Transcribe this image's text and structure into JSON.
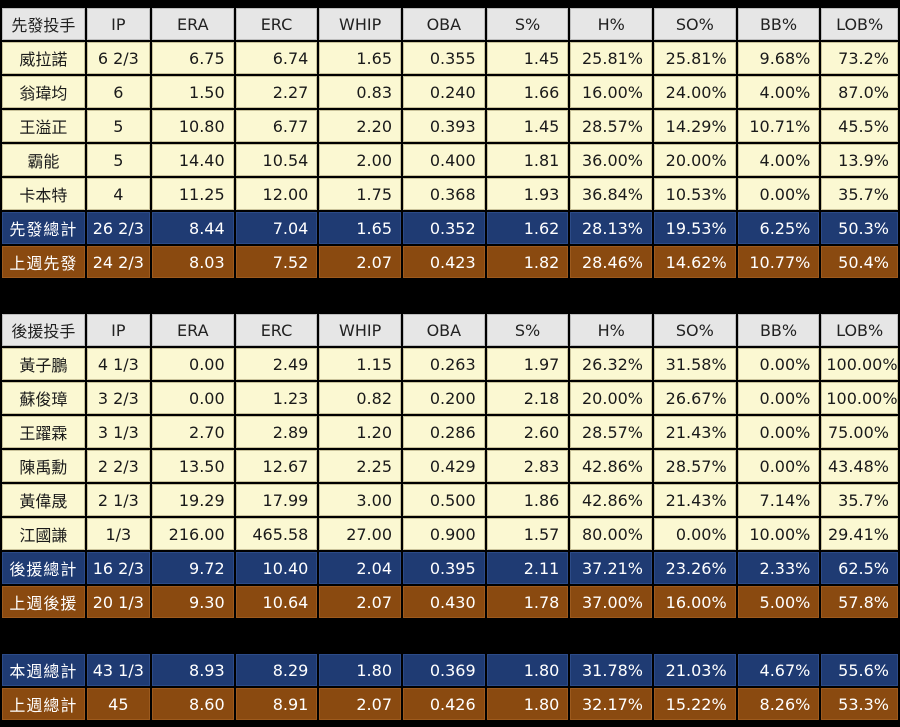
{
  "columns": [
    "IP",
    "ERA",
    "ERC",
    "WHIP",
    "OBA",
    "S%",
    "H%",
    "SO%",
    "BB%",
    "LOB%"
  ],
  "starters": {
    "header": "先發投手",
    "rows": [
      {
        "name": "威拉諾",
        "vals": [
          "6 2/3",
          "6.75",
          "6.74",
          "1.65",
          "0.355",
          "1.45",
          "25.81%",
          "25.81%",
          "9.68%",
          "73.2%"
        ]
      },
      {
        "name": "翁瑋均",
        "vals": [
          "6",
          "1.50",
          "2.27",
          "0.83",
          "0.240",
          "1.66",
          "16.00%",
          "24.00%",
          "4.00%",
          "87.0%"
        ]
      },
      {
        "name": "王溢正",
        "vals": [
          "5",
          "10.80",
          "6.77",
          "2.20",
          "0.393",
          "1.45",
          "28.57%",
          "14.29%",
          "10.71%",
          "45.5%"
        ]
      },
      {
        "name": "霸能",
        "vals": [
          "5",
          "14.40",
          "10.54",
          "2.00",
          "0.400",
          "1.81",
          "36.00%",
          "20.00%",
          "4.00%",
          "13.9%"
        ]
      },
      {
        "name": "卡本特",
        "vals": [
          "4",
          "11.25",
          "12.00",
          "1.75",
          "0.368",
          "1.93",
          "36.84%",
          "10.53%",
          "0.00%",
          "35.7%"
        ]
      }
    ],
    "total": {
      "name": "先發總計",
      "vals": [
        "26 2/3",
        "8.44",
        "7.04",
        "1.65",
        "0.352",
        "1.62",
        "28.13%",
        "19.53%",
        "6.25%",
        "50.3%"
      ]
    },
    "last_week": {
      "name": "上週先發",
      "vals": [
        "24 2/3",
        "8.03",
        "7.52",
        "2.07",
        "0.423",
        "1.82",
        "28.46%",
        "14.62%",
        "10.77%",
        "50.4%"
      ]
    }
  },
  "relievers": {
    "header": "後援投手",
    "rows": [
      {
        "name": "黃子鵬",
        "vals": [
          "4 1/3",
          "0.00",
          "2.49",
          "1.15",
          "0.263",
          "1.97",
          "26.32%",
          "31.58%",
          "0.00%",
          "100.00%"
        ]
      },
      {
        "name": "蘇俊璋",
        "vals": [
          "3 2/3",
          "0.00",
          "1.23",
          "0.82",
          "0.200",
          "2.18",
          "20.00%",
          "26.67%",
          "0.00%",
          "100.00%"
        ]
      },
      {
        "name": "王躍霖",
        "vals": [
          "3 1/3",
          "2.70",
          "2.89",
          "1.20",
          "0.286",
          "2.60",
          "28.57%",
          "21.43%",
          "0.00%",
          "75.00%"
        ]
      },
      {
        "name": "陳禹勳",
        "vals": [
          "2 2/3",
          "13.50",
          "12.67",
          "2.25",
          "0.429",
          "2.83",
          "42.86%",
          "28.57%",
          "0.00%",
          "43.48%"
        ]
      },
      {
        "name": "黃偉晟",
        "vals": [
          "2 1/3",
          "19.29",
          "17.99",
          "3.00",
          "0.500",
          "1.86",
          "42.86%",
          "21.43%",
          "7.14%",
          "35.7%"
        ]
      },
      {
        "name": "江國謙",
        "vals": [
          "1/3",
          "216.00",
          "465.58",
          "27.00",
          "0.900",
          "1.57",
          "80.00%",
          "0.00%",
          "10.00%",
          "29.41%"
        ]
      }
    ],
    "total": {
      "name": "後援總計",
      "vals": [
        "16 2/3",
        "9.72",
        "10.40",
        "2.04",
        "0.395",
        "2.11",
        "37.21%",
        "23.26%",
        "2.33%",
        "62.5%"
      ]
    },
    "last_week": {
      "name": "上週後援",
      "vals": [
        "20 1/3",
        "9.30",
        "10.64",
        "2.07",
        "0.430",
        "1.78",
        "37.00%",
        "16.00%",
        "5.00%",
        "57.8%"
      ]
    }
  },
  "overall": {
    "this_week": {
      "name": "本週總計",
      "vals": [
        "43 1/3",
        "8.93",
        "8.29",
        "1.80",
        "0.369",
        "1.80",
        "31.78%",
        "21.03%",
        "4.67%",
        "55.6%"
      ]
    },
    "last_week": {
      "name": "上週總計",
      "vals": [
        "45",
        "8.60",
        "8.91",
        "2.07",
        "0.426",
        "1.80",
        "32.17%",
        "15.22%",
        "8.26%",
        "53.3%"
      ]
    }
  },
  "colors": {
    "row_bg": "#fbf8d2",
    "header_bg": "#e6e6e6",
    "total_bg": "#1f3b73",
    "last_week_bg": "#8a4a10",
    "page_bg": "#000000"
  }
}
